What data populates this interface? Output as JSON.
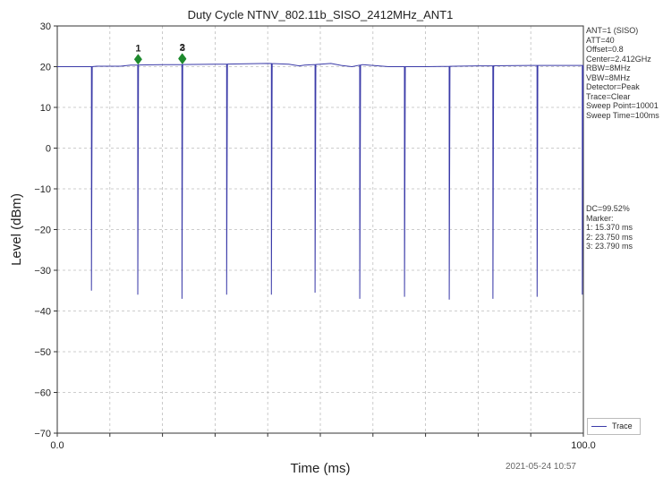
{
  "chart_data": {
    "type": "line",
    "title": "Duty Cycle NTNV_802.11b_SISO_2412MHz_ANT1",
    "xlabel": "Time (ms)",
    "ylabel": "Level (dBm)",
    "xlim": [
      0,
      100
    ],
    "ylim": [
      -70,
      30
    ],
    "x_tick_labels": [
      "0.0",
      "100.0"
    ],
    "y_ticks": [
      30,
      20,
      10,
      0,
      -10,
      -20,
      -30,
      -40,
      -50,
      -60,
      -70
    ],
    "y_tick_labels": [
      "30",
      "20",
      "10",
      "0",
      "−10",
      "−20",
      "−30",
      "−40",
      "−50",
      "−60",
      "−70"
    ],
    "grid": true,
    "legend_position": "bottom-right",
    "series": [
      {
        "name": "Trace",
        "color": "#3a3aa8",
        "baseline": [
          [
            0,
            20.0
          ],
          [
            6.5,
            20.0
          ],
          [
            7.5,
            20.1
          ],
          [
            12,
            20.1
          ],
          [
            14,
            20.4
          ],
          [
            20,
            20.5
          ],
          [
            30,
            20.6
          ],
          [
            40,
            20.8
          ],
          [
            44,
            20.6
          ],
          [
            46,
            20.2
          ],
          [
            47,
            20.4
          ],
          [
            50,
            20.6
          ],
          [
            52,
            20.8
          ],
          [
            54,
            20.3
          ],
          [
            56,
            20.0
          ],
          [
            58,
            20.5
          ],
          [
            60,
            20.3
          ],
          [
            63,
            20.0
          ],
          [
            70,
            20.0
          ],
          [
            80,
            20.2
          ],
          [
            90,
            20.3
          ],
          [
            100,
            20.3
          ]
        ],
        "dips": [
          [
            6.5,
            -35
          ],
          [
            15.3,
            -36
          ],
          [
            23.7,
            -37
          ],
          [
            32.2,
            -36
          ],
          [
            40.7,
            -36
          ],
          [
            49.0,
            -35.5
          ],
          [
            57.5,
            -37
          ],
          [
            66.0,
            -36.5
          ],
          [
            74.5,
            -37.2
          ],
          [
            82.8,
            -37
          ],
          [
            91.2,
            -36.5
          ],
          [
            99.8,
            -36
          ]
        ]
      }
    ],
    "markers": [
      {
        "label": "1",
        "x": 15.37,
        "y": 21.8
      },
      {
        "label": "2",
        "x": 23.75,
        "y": 22.0
      },
      {
        "label": "3",
        "x": 23.79,
        "y": 21.9
      }
    ],
    "marker_color": "#1e8a2e",
    "annotations": {
      "settings": [
        "ANT=1 (SISO)",
        "ATT=40",
        "Offset=0.8",
        "Center=2.412GHz",
        "RBW=8MHz",
        "VBW=8MHz",
        "Detector=Peak",
        "Trace=Clear",
        "Sweep Point=10001",
        "Sweep Time=100ms"
      ],
      "marker_info": [
        "DC=99.52%",
        "Marker:",
        "1: 15.370 ms",
        "2: 23.750 ms",
        "3: 23.790 ms"
      ],
      "timestamp": "2021-05-24 10:57"
    }
  }
}
